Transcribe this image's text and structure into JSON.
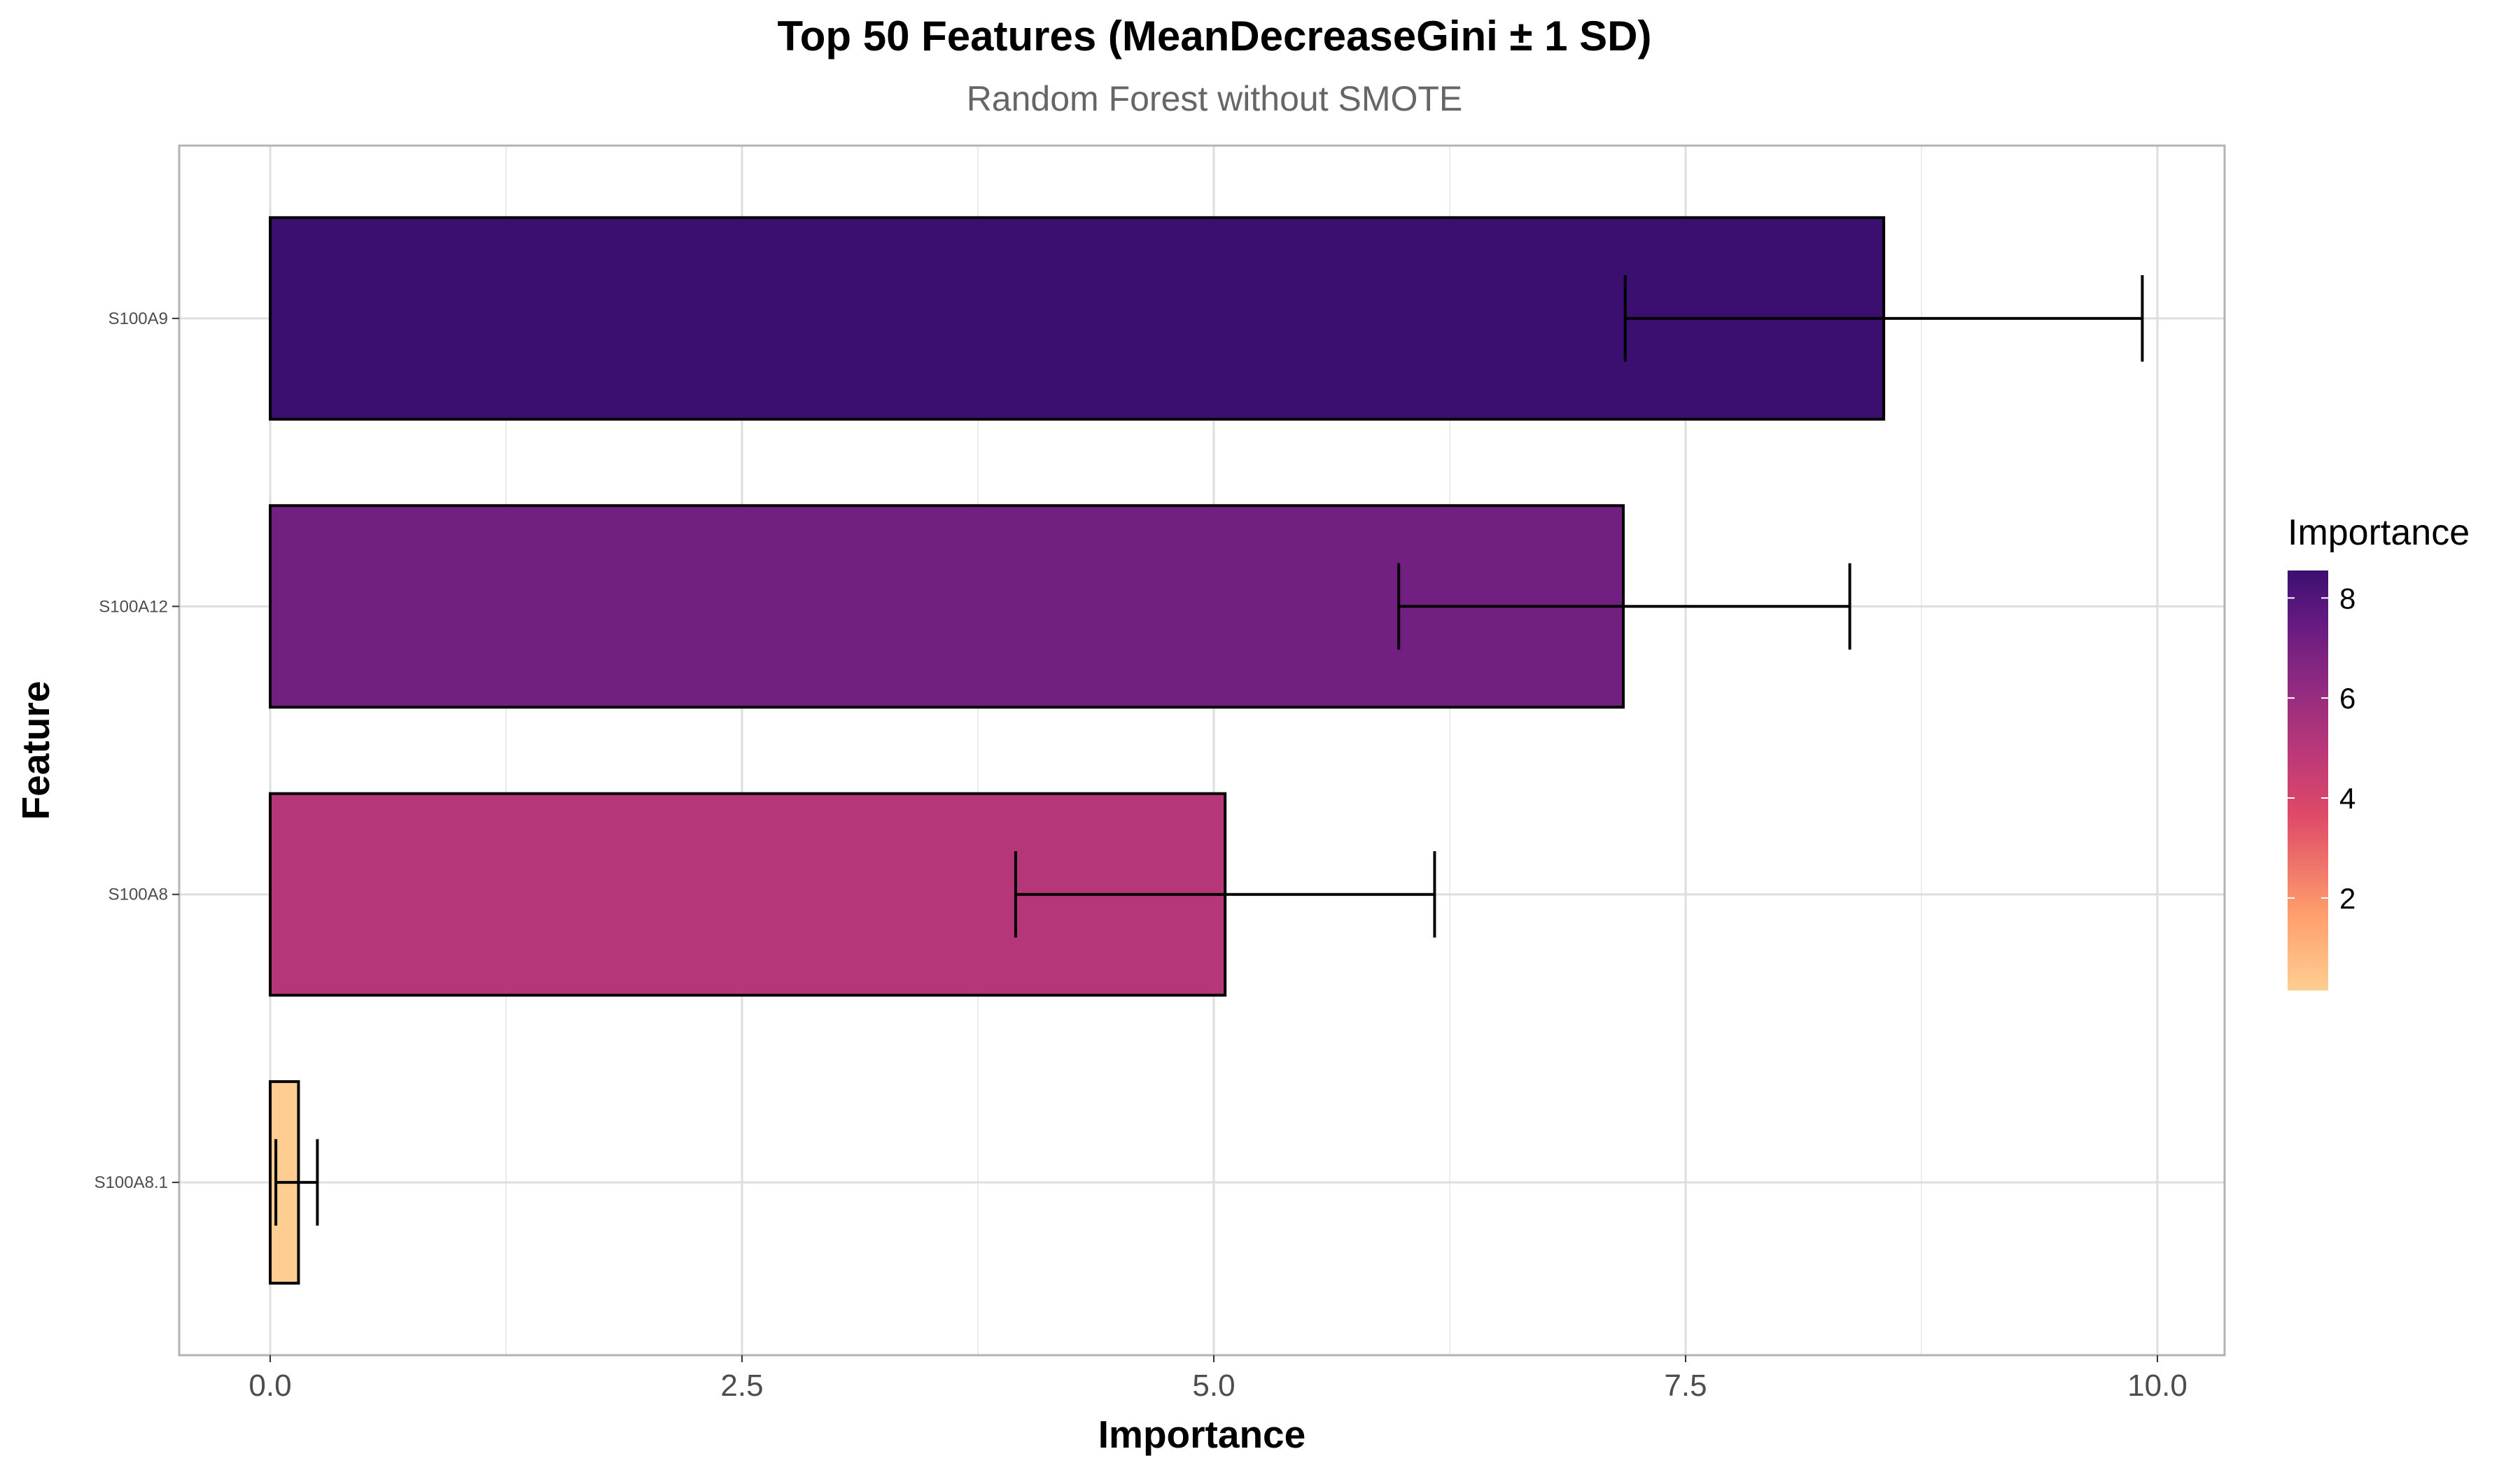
{
  "chart_data": {
    "type": "bar",
    "orientation": "horizontal",
    "title": "Top 50 Features (MeanDecreaseGini ± 1 SD)",
    "subtitle": "Random Forest without SMOTE",
    "xlabel": "Importance",
    "ylabel": "Feature",
    "xlim": [
      -0.5,
      10.2
    ],
    "x_ticks": [
      "0.0",
      "2.5",
      "5.0",
      "7.5",
      "10.0"
    ],
    "x_tick_values": [
      0,
      2.5,
      5,
      7.5,
      10
    ],
    "categories": [
      "S100A9",
      "S100A12",
      "S100A8",
      "S100A8.1"
    ],
    "values": [
      8.55,
      7.17,
      5.06,
      0.15
    ],
    "sd_low": [
      7.18,
      5.98,
      3.95,
      0.03
    ],
    "sd_high": [
      9.92,
      8.37,
      6.17,
      0.25
    ],
    "grid": true,
    "legend": {
      "title": "Importance",
      "placement": "right",
      "range": [
        0.15,
        8.55
      ],
      "ticks": [
        "2",
        "4",
        "6",
        "8"
      ],
      "tick_values": [
        2,
        4,
        6,
        8
      ],
      "colors": [
        "#FECE91",
        "#FE9F6D",
        "#DE4968",
        "#B73779",
        "#8C2981",
        "#641A80",
        "#3B0F70"
      ]
    }
  }
}
